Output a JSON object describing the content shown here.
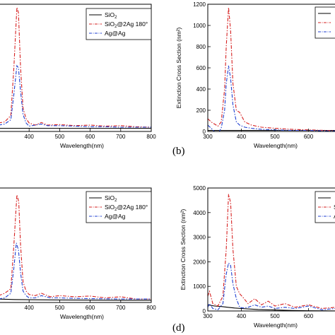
{
  "chart_data": [
    {
      "type": "line",
      "panel_label": "",
      "xlabel": "Wavelength(nm)",
      "ylabel": "",
      "xlim": [
        300,
        800
      ],
      "ylim": [
        0,
        1200
      ],
      "xticks": [
        400,
        500,
        600,
        700,
        800
      ],
      "xtick_labels": [
        "400",
        "500",
        "600",
        "700",
        "800"
      ],
      "yticks": [],
      "ytick_labels": [],
      "legend": {
        "placement": "top-right",
        "entries": [
          "SiO2",
          "SiO2@2Ag 180°",
          "Ag@Ag"
        ]
      },
      "series": [
        {
          "name": "SiO2",
          "color": "#000000",
          "style": "solid",
          "x": [
            300,
            400,
            500,
            600,
            700,
            800
          ],
          "y": [
            30,
            30,
            30,
            30,
            30,
            30
          ]
        },
        {
          "name": "SiO2@2Ag 180°",
          "color": "#d62020",
          "style": "dashdot",
          "x": [
            300,
            320,
            340,
            350,
            360,
            365,
            372,
            380,
            390,
            400,
            420,
            440,
            460,
            500,
            550,
            600,
            650,
            700,
            750,
            800
          ],
          "y": [
            80,
            90,
            150,
            600,
            1170,
            1120,
            600,
            220,
            120,
            80,
            60,
            85,
            60,
            65,
            55,
            60,
            50,
            55,
            45,
            40
          ]
        },
        {
          "name": "Ag@Ag",
          "color": "#1f3fd0",
          "style": "dashdot",
          "x": [
            300,
            320,
            340,
            350,
            360,
            365,
            372,
            380,
            390,
            400,
            420,
            440,
            460,
            500,
            550,
            600,
            650,
            700,
            750,
            800
          ],
          "y": [
            60,
            70,
            110,
            350,
            620,
            600,
            380,
            160,
            80,
            50,
            60,
            70,
            55,
            55,
            50,
            45,
            45,
            40,
            40,
            40
          ]
        }
      ]
    },
    {
      "type": "line",
      "panel_label": "(b)",
      "xlabel": "Wavelength(nm)",
      "ylabel": "Extinction Cross Section (nm²)",
      "xlim": [
        300,
        700
      ],
      "ylim": [
        0,
        1200
      ],
      "xticks": [
        300,
        400,
        500,
        600
      ],
      "xtick_labels": [
        "300",
        "400",
        "500",
        "600"
      ],
      "yticks": [
        0,
        200,
        400,
        600,
        800,
        1000,
        1200
      ],
      "ytick_labels": [
        "0",
        "200",
        "400",
        "600",
        "800",
        "1000",
        "1200"
      ],
      "legend": {
        "placement": "top-right",
        "entries": [
          "",
          "",
          ""
        ]
      },
      "series": [
        {
          "name": "",
          "color": "#000000",
          "style": "solid",
          "x": [
            300,
            400,
            500,
            600,
            700
          ],
          "y": [
            10,
            10,
            10,
            10,
            10
          ]
        },
        {
          "name": "",
          "color": "#d62020",
          "style": "dashdot",
          "x": [
            300,
            310,
            320,
            330,
            340,
            350,
            355,
            362,
            368,
            375,
            385,
            395,
            410,
            430,
            460,
            500,
            550,
            600,
            650,
            700
          ],
          "y": [
            120,
            90,
            70,
            50,
            90,
            400,
            800,
            1170,
            950,
            450,
            200,
            180,
            90,
            60,
            40,
            30,
            20,
            15,
            10,
            5
          ]
        },
        {
          "name": "",
          "color": "#1f3fd0",
          "style": "dashdot",
          "x": [
            300,
            310,
            320,
            330,
            340,
            350,
            355,
            362,
            368,
            375,
            385,
            395,
            410,
            430,
            460,
            500,
            550,
            600,
            650,
            700
          ],
          "y": [
            60,
            30,
            0,
            -20,
            30,
            200,
            450,
            620,
            500,
            250,
            90,
            60,
            40,
            30,
            20,
            15,
            10,
            10,
            5,
            5
          ]
        }
      ]
    },
    {
      "type": "line",
      "panel_label": "",
      "xlabel": "Wavelength(nm)",
      "ylabel": "",
      "xlim": [
        300,
        800
      ],
      "ylim": [
        0,
        5000
      ],
      "xticks": [
        400,
        500,
        600,
        700,
        800
      ],
      "xtick_labels": [
        "400",
        "500",
        "600",
        "700",
        "800"
      ],
      "yticks": [],
      "ytick_labels": [],
      "legend": {
        "placement": "top-right",
        "entries": [
          "SiO2",
          "SiO2@2Ag 180°",
          "Ag@Ag"
        ]
      },
      "series": [
        {
          "name": "SiO2",
          "color": "#000000",
          "style": "solid",
          "x": [
            300,
            350,
            400,
            500,
            600,
            700,
            800
          ],
          "y": [
            150,
            130,
            120,
            110,
            105,
            100,
            100
          ]
        },
        {
          "name": "SiO2@2Ag 180°",
          "color": "#d62020",
          "style": "dashdot",
          "x": [
            300,
            320,
            340,
            350,
            360,
            366,
            372,
            380,
            390,
            400,
            420,
            440,
            470,
            500,
            550,
            600,
            650,
            700,
            750,
            800
          ],
          "y": [
            300,
            400,
            600,
            2500,
            4700,
            4400,
            2500,
            900,
            500,
            350,
            300,
            400,
            250,
            300,
            250,
            280,
            200,
            250,
            150,
            150
          ]
        },
        {
          "name": "Ag@Ag",
          "color": "#1f3fd0",
          "style": "dashdot",
          "x": [
            300,
            320,
            340,
            350,
            358,
            365,
            372,
            380,
            390,
            400,
            420,
            440,
            470,
            500,
            550,
            600,
            650,
            700,
            750,
            800
          ],
          "y": [
            150,
            200,
            400,
            1500,
            2600,
            2300,
            1300,
            500,
            300,
            200,
            200,
            300,
            200,
            200,
            180,
            170,
            160,
            150,
            150,
            150
          ]
        }
      ]
    },
    {
      "type": "line",
      "panel_label": "(d)",
      "xlabel": "Wavelength(nm)",
      "ylabel": "Extinction Cross Section (nm²)",
      "xlim": [
        300,
        700
      ],
      "ylim": [
        0,
        5000
      ],
      "xticks": [
        300,
        400,
        500,
        600
      ],
      "xtick_labels": [
        "300",
        "400",
        "500",
        "600"
      ],
      "yticks": [
        0,
        1000,
        2000,
        3000,
        4000,
        5000
      ],
      "ytick_labels": [
        "0",
        "1000",
        "2000",
        "3000",
        "4000",
        "5000"
      ],
      "legend": {
        "placement": "top-right",
        "entries": [
          "",
          "S",
          "A"
        ]
      },
      "series": [
        {
          "name": "",
          "color": "#000000",
          "style": "solid",
          "x": [
            300,
            320,
            340,
            360,
            380,
            400,
            450,
            500,
            550,
            600,
            650,
            700
          ],
          "y": [
            250,
            200,
            180,
            150,
            120,
            100,
            60,
            40,
            20,
            10,
            5,
            0
          ]
        },
        {
          "name": "",
          "color": "#d62020",
          "style": "dashdot",
          "x": [
            300,
            305,
            315,
            330,
            345,
            355,
            362,
            368,
            375,
            385,
            395,
            405,
            420,
            440,
            460,
            480,
            500,
            530,
            560,
            600,
            640,
            680,
            700
          ],
          "y": [
            600,
            800,
            300,
            200,
            600,
            2500,
            4750,
            4400,
            2500,
            1000,
            700,
            550,
            300,
            500,
            250,
            400,
            200,
            300,
            150,
            250,
            100,
            150,
            100
          ]
        },
        {
          "name": "",
          "color": "#1f3fd0",
          "style": "dashdot",
          "x": [
            300,
            305,
            315,
            330,
            345,
            355,
            362,
            368,
            375,
            385,
            395,
            405,
            420,
            440,
            460,
            480,
            500,
            530,
            560,
            600,
            640,
            680,
            700
          ],
          "y": [
            150,
            300,
            100,
            50,
            300,
            1500,
            1950,
            1850,
            1100,
            500,
            150,
            120,
            150,
            250,
            150,
            200,
            100,
            150,
            100,
            200,
            50,
            100,
            50
          ]
        }
      ]
    }
  ]
}
